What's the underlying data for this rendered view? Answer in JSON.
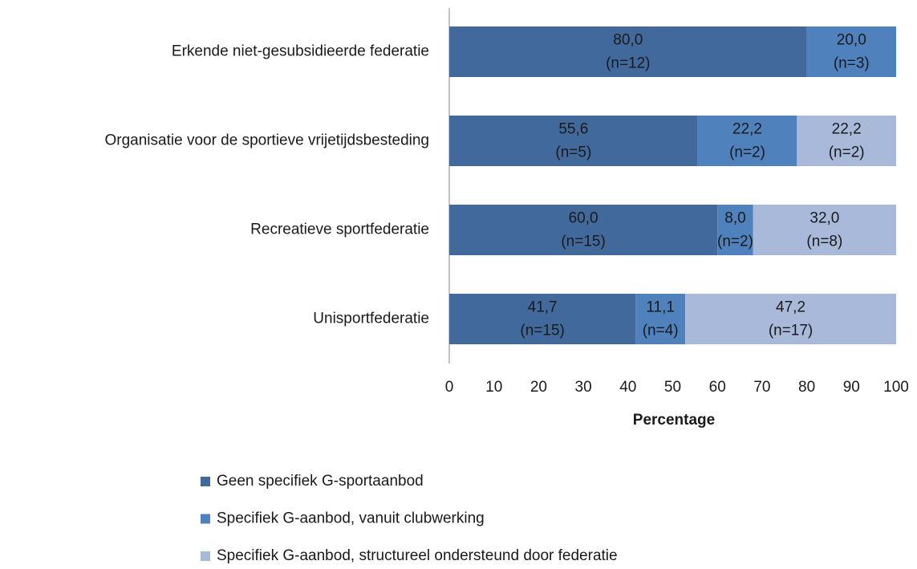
{
  "chart_data": {
    "type": "stacked-bar-horizontal",
    "categories": [
      "Erkende niet-gesubsidieerde federatie",
      "Organisatie voor de sportieve vrijetijdsbesteding",
      "Recreatieve sportfederatie",
      "Unisportfederatie"
    ],
    "series": [
      {
        "name": "Geen specifiek G-sportaanbod",
        "color": "#41699b",
        "values": [
          80.0,
          55.6,
          60.0,
          41.7
        ],
        "value_labels": [
          "80,0",
          "55,6",
          "60,0",
          "41,7"
        ],
        "counts": [
          12,
          5,
          15,
          15
        ],
        "count_labels": [
          "(n=12)",
          "(n=5)",
          "(n=15)",
          "(n=15)"
        ]
      },
      {
        "name": "Specifiek G-aanbod, vanuit clubwerking",
        "color": "#4f81bd",
        "values": [
          20.0,
          22.2,
          8.0,
          11.1
        ],
        "value_labels": [
          "20,0",
          "22,2",
          "8,0",
          "11,1"
        ],
        "counts": [
          3,
          2,
          2,
          4
        ],
        "count_labels": [
          "(n=3)",
          "(n=2)",
          "(n=2)",
          "(n=4)"
        ]
      },
      {
        "name": "Specifiek G-aanbod, structureel ondersteund door federatie",
        "color": "#a9b9d9",
        "values": [
          null,
          22.2,
          32.0,
          47.2
        ],
        "value_labels": [
          null,
          "22,2",
          "32,0",
          "47,2"
        ],
        "counts": [
          null,
          2,
          8,
          17
        ],
        "count_labels": [
          null,
          "(n=2)",
          "(n=8)",
          "(n=17)"
        ]
      }
    ],
    "xlabel": "Percentage",
    "xlim": [
      0,
      100
    ],
    "xticks": [
      0,
      10,
      20,
      30,
      40,
      50,
      60,
      70,
      80,
      90,
      100
    ],
    "grid": false
  }
}
